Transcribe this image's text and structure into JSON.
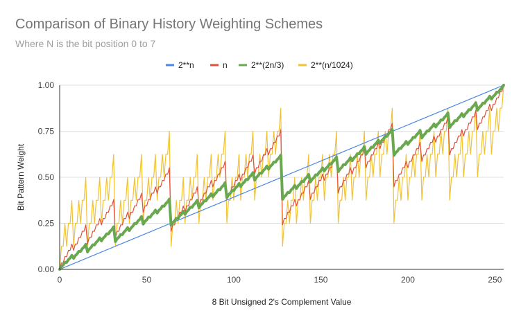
{
  "chart_data": {
    "type": "line",
    "title": "Comparison of Binary History Weighting Schemes",
    "subtitle": "Where N is the bit position 0 to 7",
    "xlabel": "8 Bit Unsigned 2's Complement Value",
    "ylabel": "Bit Pattern Weight",
    "xlim": [
      0,
      255
    ],
    "ylim": [
      0,
      1
    ],
    "x_ticks": [
      "0",
      "50",
      "100",
      "150",
      "200",
      "250"
    ],
    "y_ticks": [
      "0.00",
      "0.25",
      "0.50",
      "0.75",
      "1.00"
    ],
    "grid": true,
    "legend_position": "top",
    "x_domain": "integers 0..255; each series y(v) = sum over set bits k of v of w(k) / sum over k=0..7 of w(k)",
    "series": [
      {
        "name": "2**n",
        "color": "#4a86e8",
        "bit_weights": [
          1,
          2,
          4,
          8,
          16,
          32,
          64,
          128
        ],
        "stroke": "thin"
      },
      {
        "name": "n",
        "color": "#e0503c",
        "bit_weights": [
          1,
          1,
          2,
          3,
          4,
          5,
          6,
          7
        ],
        "stroke": "thin"
      },
      {
        "name": "2**(2n/3)",
        "color": "#6aa84f",
        "bit_weights": [
          1,
          1.587,
          2.52,
          4,
          6.35,
          10.08,
          16,
          25.4
        ],
        "stroke": "thick"
      },
      {
        "name": "2**(n/1024)",
        "color": "#f1c232",
        "bit_weights": [
          1,
          1.00068,
          1.00135,
          1.00203,
          1.00271,
          1.00339,
          1.00407,
          1.00475
        ],
        "stroke": "thin"
      }
    ]
  }
}
